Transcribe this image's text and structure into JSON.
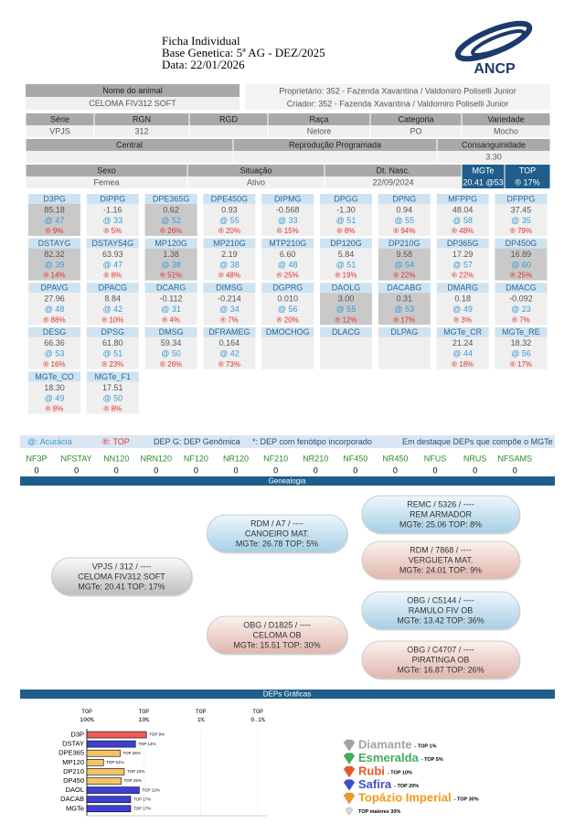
{
  "header": {
    "title": "Ficha Individual",
    "base": "Base Genetica: 5ª AG - DEZ/2025",
    "date": "Data: 22/01/2026",
    "logo": "ANCP"
  },
  "animal": {
    "name_label": "Nome do animal",
    "name": "CELOMA FIV312 SOFT",
    "owner": "Proprietário: 352 - Fazenda Xavantina / Valdomiro Poliselli Junior",
    "breeder": "Criador: 352 - Fazenda Xavantina / Valdomiro Poliselli Junior",
    "ids": {
      "headers": [
        "Série",
        "RGN",
        "RGD",
        "Raça",
        "Categoria",
        "Variedade"
      ],
      "values": [
        "VPJS",
        "312",
        null,
        "Nelore",
        "PO",
        "Mocho"
      ]
    },
    "repro": {
      "headers": [
        "Central",
        "Reprodução Programada",
        "Consanguinidade"
      ],
      "values": [
        null,
        null,
        "3.30"
      ]
    },
    "status": {
      "headers": [
        "Sexo",
        "Situação",
        "Dt. Nasc.",
        "MGTe",
        "TOP"
      ],
      "values": [
        "Femea",
        "Ativo",
        "22/09/2024",
        "20.41 @53",
        "® 17%"
      ]
    }
  },
  "deps": {
    "cells": [
      {
        "name": "D3PG",
        "value": "85.18",
        "acc": "@ 47",
        "top": "® 9%",
        "highlight": true
      },
      {
        "name": "DIPPG",
        "value": "-1.16",
        "acc": "@ 33",
        "top": "® 5%"
      },
      {
        "name": "DPE365G",
        "value": "0.62",
        "acc": "@ 52",
        "top": "® 26%",
        "highlight": true
      },
      {
        "name": "DPE450G",
        "value": "0.93",
        "acc": "@ 55",
        "top": "® 20%"
      },
      {
        "name": "DIPMG",
        "value": "-0.568",
        "acc": "@ 33",
        "top": "® 15%"
      },
      {
        "name": "DPGG",
        "value": "-1.30",
        "acc": "@ 51",
        "top": "® 8%"
      },
      {
        "name": "DPNG",
        "value": "0.94",
        "acc": "@ 55",
        "top": "® 94%"
      },
      {
        "name": "MFPPG",
        "value": "48.04",
        "acc": "@ 58",
        "top": "® 48%"
      },
      {
        "name": "DFPPG",
        "value": "37.45",
        "acc": "@ 35",
        "top": "® 79%"
      },
      {
        "name": "DSTAYG",
        "value": "82.32",
        "acc": "@ 39",
        "top": "® 14%",
        "highlight": true
      },
      {
        "name": "DSTAY54G",
        "value": "63.93",
        "acc": "@ 47",
        "top": "® 8%"
      },
      {
        "name": "MP120G",
        "value": "1.38",
        "acc": "@ 38",
        "top": "® 51%",
        "highlight": true
      },
      {
        "name": "MP210G",
        "value": "2.19",
        "acc": "@ 38",
        "top": "® 48%"
      },
      {
        "name": "MTP210G",
        "value": "6.60",
        "acc": "@ 48",
        "top": "® 25%"
      },
      {
        "name": "DP120G",
        "value": "5.84",
        "acc": "@ 51",
        "top": "® 19%"
      },
      {
        "name": "DP210G",
        "value": "9.58",
        "acc": "@ 54",
        "top": "® 22%",
        "highlight": true
      },
      {
        "name": "DP365G",
        "value": "17.29",
        "acc": "@ 57",
        "top": "® 22%"
      },
      {
        "name": "DP450G",
        "value": "16.89",
        "acc": "@ 60",
        "top": "® 25%",
        "highlight": true
      },
      {
        "name": "DPAVG",
        "value": "27.96",
        "acc": "@ 48",
        "top": "® 88%"
      },
      {
        "name": "DPACG",
        "value": "8.84",
        "acc": "@ 42",
        "top": "® 10%"
      },
      {
        "name": "DCARG",
        "value": "-0.112",
        "acc": "@ 31",
        "top": "® 4%"
      },
      {
        "name": "DIMSG",
        "value": "-0.214",
        "acc": "@ 34",
        "top": "® 7%"
      },
      {
        "name": "DGPRG",
        "value": "0.010",
        "acc": "@ 56",
        "top": "® 20%"
      },
      {
        "name": "DAOLG",
        "value": "3.00",
        "acc": "@ 55",
        "top": "® 12%",
        "highlight": true
      },
      {
        "name": "DACABG",
        "value": "0.31",
        "acc": "@ 53",
        "top": "® 17%",
        "highlight": true
      },
      {
        "name": "DMARG",
        "value": "0.18",
        "acc": "@ 49",
        "top": "® 3%"
      },
      {
        "name": "DMACG",
        "value": "-0.092",
        "acc": "@ 23",
        "top": "® 7%"
      },
      {
        "name": "DESG",
        "value": "66.36",
        "acc": "@ 53",
        "top": "® 16%"
      },
      {
        "name": "DPSG",
        "value": "61.80",
        "acc": "@ 51",
        "top": "® 23%"
      },
      {
        "name": "DMSG",
        "value": "59.34",
        "acc": "@ 50",
        "top": "® 26%"
      },
      {
        "name": "DFRAMEG",
        "value": "0.164",
        "acc": "@ 42",
        "top": "® 73%"
      },
      {
        "name": "DMOCHOG"
      },
      {
        "name": "DLACG"
      },
      {
        "name": "DLPAG"
      },
      {
        "name": "MGTe_CR",
        "value": "21.24",
        "acc": "@ 44",
        "top": "® 18%"
      },
      {
        "name": "MGTe_RE",
        "value": "18.32",
        "acc": "@ 56",
        "top": "® 17%"
      },
      {
        "name": "MGTe_CO",
        "value": "18.30",
        "acc": "@ 49",
        "top": "® 8%"
      },
      {
        "name": "MGTe_F1",
        "value": "17.51",
        "acc": "@ 50",
        "top": "® 8%"
      }
    ]
  },
  "legend": {
    "accuracy": "@: Acurácia",
    "top": "®: TOP",
    "genomic": "DEP G: DEP Genômica",
    "phenotype": "*: DEP com fenótipo incorporado",
    "highlight": "Em destaque DEPs que compõe o MGTe"
  },
  "nf": {
    "labels": [
      "NF3P",
      "NFSTAY",
      "NN120",
      "NRN120",
      "NF120",
      "NR120",
      "NF210",
      "NR210",
      "NF450",
      "NR450",
      "NFUS",
      "NRUS",
      "NFSAMS"
    ],
    "values": [
      0,
      0,
      0,
      0,
      0,
      0,
      0,
      0,
      0,
      0,
      0,
      0,
      0
    ]
  },
  "genealogy": {
    "title": "Genealogia",
    "nodes": [
      {
        "id": "VPJS / 312 / ----",
        "name": "CELOMA FIV312 SOFT",
        "score": "MGTe: 20.41   TOP: 17%"
      },
      {
        "id": "RDM / A7 / ----",
        "name": "CANOEIRO MAT.",
        "score": "MGTe: 26.78   TOP: 5%"
      },
      {
        "id": "OBG / D1825 / ----",
        "name": "CELOMA OB",
        "score": "MGTe: 15.51   TOP: 30%"
      },
      {
        "id": "REMC / 5326 / ----",
        "name": "REM ARMADOR",
        "score": "MGTe: 25.06   TOP: 8%"
      },
      {
        "id": "RDM / 7868 / ----",
        "name": "VERGUETA MAT.",
        "score": "MGTe: 24.01   TOP: 9%"
      },
      {
        "id": "OBG / C5144 / ----",
        "name": "RAMULO FIV OB",
        "score": "MGTe: 13.42   TOP: 36%"
      },
      {
        "id": "OBG / C4707 / ----",
        "name": "PIRATINGA OB",
        "score": "MGTe: 16.87   TOP: 26%"
      }
    ]
  },
  "dep_graph": {
    "title": "DEPs Gráficas",
    "type": "bar",
    "log": true,
    "xlim": [
      100,
      0.1
    ],
    "xticks": [
      {
        "value": 100,
        "label": "TOP 100%"
      },
      {
        "value": 10,
        "label": "TOP 10%"
      },
      {
        "value": 1,
        "label": "TOP 1%"
      },
      {
        "value": 0.1,
        "label": "TOP 0.1%"
      }
    ],
    "categories": [
      "D3P",
      "DSTAY",
      "DPE365",
      "MP120",
      "DP210",
      "DP450",
      "DAOL",
      "DACAB",
      "MGTe"
    ],
    "values": [
      9,
      14,
      26,
      51,
      22,
      25,
      12,
      17,
      17
    ],
    "value_labels": [
      "TOP 9%",
      "TOP 14%",
      "TOP 26%",
      "TOP 51%",
      "TOP 22%",
      "TOP 25%",
      "TOP 12%",
      "TOP 17%",
      "TOP 17%"
    ],
    "colors": [
      "#ee5b5b",
      "#3f3fd6",
      "#f2c46a",
      "#f2c46a",
      "#f2c46a",
      "#f2c46a",
      "#3f3fd6",
      "#3f3fd6",
      "#3f3fd6"
    ]
  },
  "medals": [
    {
      "name": "Diamante",
      "range": "- TOP 1%",
      "color": "#a3a3a3"
    },
    {
      "name": "Esmeralda",
      "range": "- TOP 5%",
      "color": "#3fae5a"
    },
    {
      "name": "Rubi",
      "range": "- TOP 10%",
      "color": "#e8562a"
    },
    {
      "name": "Safira",
      "range": "- TOP 20%",
      "color": "#3d4fc6"
    },
    {
      "name": "Topázio Imperial",
      "range": "- TOP 30%",
      "color": "#f39a1a"
    },
    {
      "range": "TOP maiores 30%",
      "color": "#d8d8d8"
    }
  ]
}
